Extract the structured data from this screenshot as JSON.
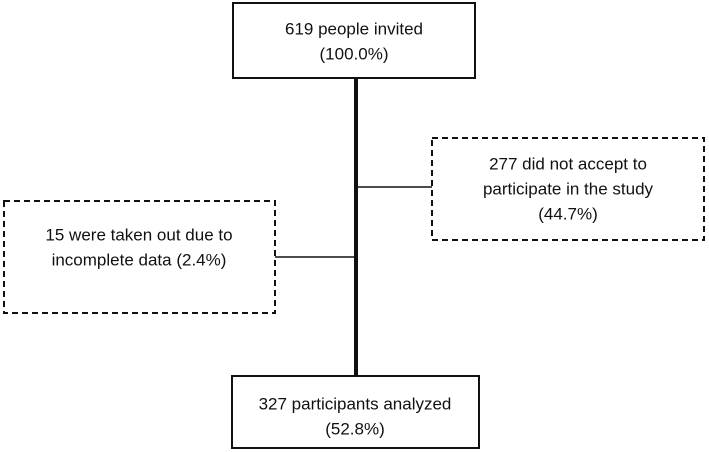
{
  "nodes": [
    {
      "lines": [
        "619 people invited",
        "(100.0%)"
      ]
    },
    {
      "lines": [
        "277 did not accept to",
        "participate in the study",
        "(44.7%)"
      ]
    },
    {
      "lines": [
        "15 were taken out due to",
        "incomplete data (2.4%)"
      ]
    },
    {
      "lines": [
        "327 participants analyzed",
        "(52.8%)"
      ]
    }
  ]
}
